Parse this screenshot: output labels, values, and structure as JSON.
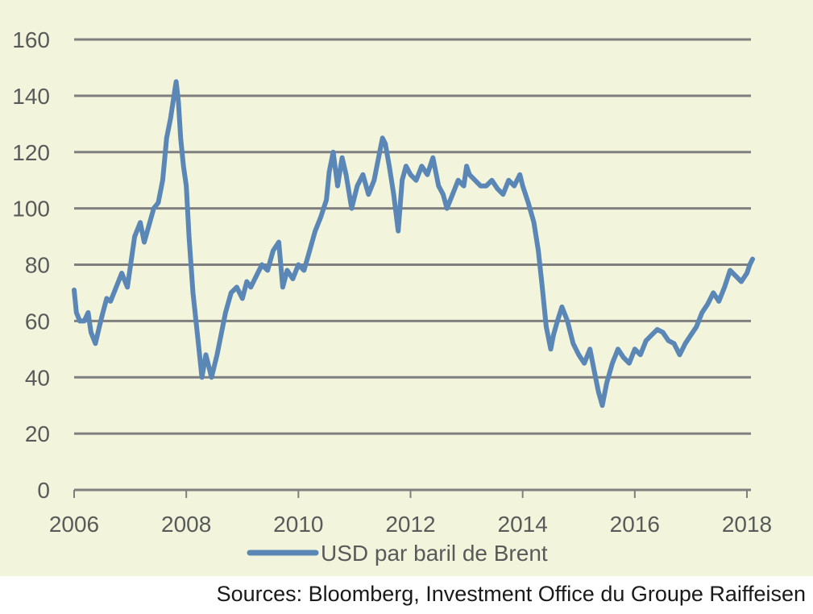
{
  "colors": {
    "background": "#f2f5dc",
    "line": "#5b87b7",
    "grid": "#7f7f7f",
    "text": "#5a5a5a"
  },
  "source": "Sources: Bloomberg, Investment Office du Groupe Raiffeisen",
  "chart_data": {
    "type": "line",
    "title": "",
    "xlabel": "",
    "ylabel": "",
    "xlim": [
      2006,
      2018.1
    ],
    "ylim": [
      0,
      160
    ],
    "x_ticks": [
      "2006",
      "2008",
      "2010",
      "2012",
      "2014",
      "2016",
      "2018"
    ],
    "y_ticks": [
      "0",
      "20",
      "40",
      "60",
      "80",
      "100",
      "120",
      "140",
      "160"
    ],
    "grid": "horizontal",
    "legend_position": "bottom",
    "series": [
      {
        "name": "USD par baril de Brent",
        "x": [
          2006.0,
          2006.04,
          2006.1,
          2006.18,
          2006.25,
          2006.3,
          2006.38,
          2006.45,
          2006.5,
          2006.58,
          2006.65,
          2006.75,
          2006.85,
          2006.95,
          2007.0,
          2007.08,
          2007.18,
          2007.25,
          2007.35,
          2007.42,
          2007.5,
          2007.58,
          2007.65,
          2007.72,
          2007.78,
          2007.82,
          2007.86,
          2007.9,
          2007.95,
          2008.0,
          2008.05,
          2008.12,
          2008.2,
          2008.28,
          2008.35,
          2008.45,
          2008.55,
          2008.62,
          2008.7,
          2008.8,
          2008.9,
          2009.0,
          2009.08,
          2009.15,
          2009.25,
          2009.35,
          2009.45,
          2009.55,
          2009.65,
          2009.72,
          2009.8,
          2009.9,
          2010.0,
          2010.1,
          2010.2,
          2010.3,
          2010.4,
          2010.5,
          2010.55,
          2010.62,
          2010.7,
          2010.78,
          2010.85,
          2010.95,
          2011.05,
          2011.15,
          2011.25,
          2011.35,
          2011.45,
          2011.5,
          2011.55,
          2011.62,
          2011.7,
          2011.78,
          2011.85,
          2011.92,
          2012.0,
          2012.1,
          2012.2,
          2012.3,
          2012.4,
          2012.45,
          2012.5,
          2012.58,
          2012.65,
          2012.75,
          2012.85,
          2012.95,
          2013.0,
          2013.05,
          2013.15,
          2013.25,
          2013.35,
          2013.45,
          2013.55,
          2013.65,
          2013.75,
          2013.85,
          2013.95,
          2014.0,
          2014.1,
          2014.2,
          2014.28,
          2014.35,
          2014.42,
          2014.5,
          2014.55,
          2014.62,
          2014.7,
          2014.8,
          2014.9,
          2015.0,
          2015.1,
          2015.2,
          2015.28,
          2015.35,
          2015.42,
          2015.5,
          2015.6,
          2015.7,
          2015.8,
          2015.9,
          2016.0,
          2016.1,
          2016.2,
          2016.3,
          2016.4,
          2016.5,
          2016.6,
          2016.7,
          2016.8,
          2016.9,
          2017.0,
          2017.1,
          2017.2,
          2017.3,
          2017.4,
          2017.5,
          2017.6,
          2017.7,
          2017.8,
          2017.9,
          2018.0,
          2018.05,
          2018.1
        ],
        "y": [
          71,
          63,
          60,
          60,
          63,
          56,
          52,
          58,
          62,
          68,
          67,
          72,
          77,
          72,
          79,
          90,
          95,
          88,
          95,
          100,
          102,
          110,
          125,
          132,
          140,
          145,
          138,
          125,
          115,
          108,
          90,
          70,
          55,
          40,
          48,
          40,
          48,
          55,
          63,
          70,
          72,
          68,
          74,
          72,
          76,
          80,
          78,
          85,
          88,
          72,
          78,
          75,
          80,
          78,
          85,
          92,
          97,
          103,
          113,
          120,
          108,
          118,
          112,
          100,
          108,
          112,
          105,
          110,
          120,
          125,
          123,
          115,
          105,
          92,
          110,
          115,
          112,
          110,
          115,
          112,
          118,
          113,
          108,
          105,
          100,
          105,
          110,
          108,
          115,
          112,
          110,
          108,
          108,
          110,
          107,
          105,
          110,
          108,
          112,
          108,
          102,
          95,
          85,
          72,
          58,
          50,
          55,
          60,
          65,
          60,
          52,
          48,
          45,
          50,
          42,
          35,
          30,
          38,
          45,
          50,
          47,
          45,
          50,
          48,
          53,
          55,
          57,
          56,
          53,
          52,
          48,
          52,
          55,
          58,
          63,
          66,
          70,
          67,
          72,
          78,
          76,
          74,
          77,
          80,
          82
        ]
      }
    ]
  }
}
